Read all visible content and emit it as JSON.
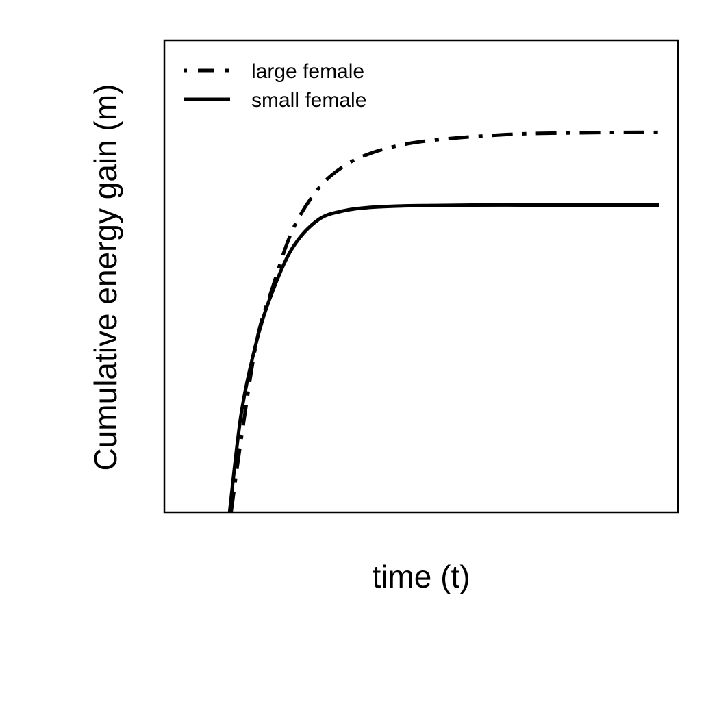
{
  "chart_data": {
    "type": "line",
    "title": "",
    "xlabel": "time (t)",
    "ylabel": "Cumulative energy gain (m)",
    "x_ticks_shown": false,
    "y_ticks_shown": false,
    "grid": false,
    "legend_position": "top-left",
    "xlim": [
      0,
      10
    ],
    "ylim": [
      0,
      10
    ],
    "series": [
      {
        "name": "large female",
        "line_style": "dash-dot",
        "color": "#000000",
        "x": [
          1.3,
          1.5,
          1.8,
          2.1,
          2.5,
          3.0,
          3.5,
          4.0,
          4.6,
          5.2,
          6.0,
          7.0,
          8.0,
          9.0,
          9.63
        ],
        "y": [
          0.0,
          1.58,
          3.64,
          4.74,
          5.99,
          6.86,
          7.34,
          7.6,
          7.78,
          7.88,
          7.96,
          8.02,
          8.04,
          8.05,
          8.05
        ]
      },
      {
        "name": "small female",
        "line_style": "solid",
        "color": "#000000",
        "x": [
          1.27,
          1.5,
          1.8,
          2.1,
          2.5,
          3.0,
          3.5,
          4.0,
          4.6,
          5.2,
          6.0,
          7.0,
          8.0,
          9.0,
          9.63
        ],
        "y": [
          0.0,
          2.11,
          3.64,
          4.66,
          5.61,
          6.2,
          6.39,
          6.46,
          6.49,
          6.5,
          6.51,
          6.51,
          6.51,
          6.51,
          6.51
        ]
      }
    ]
  }
}
